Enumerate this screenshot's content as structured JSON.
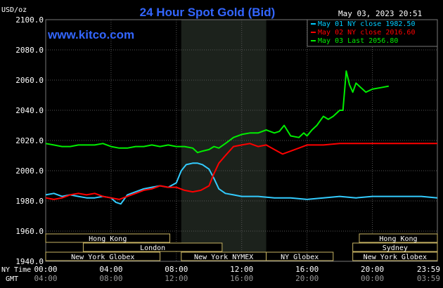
{
  "chart_data": {
    "type": "line",
    "title": "24 Hour Spot Gold (Bid)",
    "source": "www.kitco.com",
    "timestamp": "May 03, 2023 20:51",
    "y_unit": "USD/oz",
    "ylim": [
      1940,
      2100
    ],
    "yticks": [
      "2100.0",
      "2080.0",
      "2060.0",
      "2040.0",
      "2020.0",
      "2000.0",
      "1980.0",
      "1960.0",
      "1940.0"
    ],
    "x_row_labels": {
      "ny": "NY Time",
      "gmt": "GMT"
    },
    "x_ticks_ny": [
      "00:00",
      "04:00",
      "08:00",
      "12:00",
      "16:00",
      "20:00",
      "23:59"
    ],
    "x_ticks_gmt": [
      "04:00",
      "08:00",
      "12:00",
      "16:00",
      "20:00",
      "00:00",
      "03:59"
    ],
    "legend": [
      {
        "label": "May 01 NY close 1982.50",
        "color": "#00ccff"
      },
      {
        "label": "May 02 NY close 2016.60",
        "color": "#ff0000"
      },
      {
        "label": "May 03 Last 2056.80",
        "color": "#00ee00"
      }
    ],
    "series": [
      {
        "name": "May 01",
        "color": "#33ccff",
        "x": [
          0,
          0.5,
          1,
          1.5,
          2,
          2.5,
          3,
          3.5,
          4,
          4.3,
          4.6,
          5,
          5.5,
          6,
          6.5,
          7,
          7.5,
          8,
          8.3,
          8.6,
          9,
          9.3,
          9.6,
          10,
          10.3,
          10.6,
          11,
          11.5,
          12,
          13,
          14,
          15,
          16,
          17,
          18,
          19,
          20,
          21,
          22,
          23,
          23.98
        ],
        "y": [
          1984,
          1985,
          1983,
          1984,
          1983,
          1982,
          1982,
          1983,
          1982,
          1979,
          1978,
          1984,
          1986,
          1988,
          1989,
          1990,
          1989,
          1992,
          2000,
          2004,
          2005,
          2005,
          2004,
          2001,
          1995,
          1988,
          1985,
          1984,
          1983,
          1983,
          1982,
          1982,
          1981,
          1982,
          1983,
          1982,
          1983,
          1983,
          1983,
          1983,
          1982
        ]
      },
      {
        "name": "May 02",
        "color": "#ff0000",
        "x": [
          0,
          0.5,
          1,
          1.5,
          2,
          2.5,
          3,
          3.5,
          4,
          4.5,
          5,
          5.5,
          6,
          6.5,
          7,
          7.5,
          8,
          8.5,
          9,
          9.5,
          10,
          10.3,
          10.6,
          11,
          11.5,
          12,
          12.5,
          13,
          13.5,
          14,
          14.5,
          15,
          15.5,
          16,
          17,
          18,
          19,
          20,
          21,
          22,
          23,
          23.98
        ],
        "y": [
          1982,
          1981,
          1982,
          1984,
          1985,
          1984,
          1985,
          1983,
          1982,
          1981,
          1983,
          1985,
          1987,
          1988,
          1990,
          1989,
          1989,
          1987,
          1986,
          1987,
          1990,
          1998,
          2005,
          2010,
          2016,
          2017,
          2018,
          2016,
          2017,
          2014,
          2011,
          2013,
          2015,
          2017,
          2017,
          2018,
          2018,
          2018,
          2018,
          2018,
          2018,
          2018
        ]
      },
      {
        "name": "May 03",
        "color": "#00ee00",
        "x": [
          0,
          0.5,
          1,
          1.5,
          2,
          2.5,
          3,
          3.5,
          4,
          4.5,
          5,
          5.5,
          6,
          6.5,
          7,
          7.5,
          8,
          8.5,
          9,
          9.3,
          9.6,
          10,
          10.3,
          10.6,
          11,
          11.5,
          12,
          12.5,
          13,
          13.5,
          14,
          14.3,
          14.6,
          15,
          15.5,
          15.8,
          16,
          16.3,
          16.6,
          17,
          17.3,
          17.6,
          18,
          18.05,
          18.2,
          18.4,
          18.6,
          18.8,
          19,
          19.3,
          19.6,
          20,
          20.5,
          21
        ],
        "y": [
          2018,
          2017,
          2016,
          2016,
          2017,
          2017,
          2017,
          2018,
          2016,
          2015,
          2015,
          2016,
          2016,
          2017,
          2016,
          2017,
          2016,
          2016,
          2015,
          2012,
          2013,
          2014,
          2016,
          2015,
          2018,
          2022,
          2024,
          2025,
          2025,
          2027,
          2025,
          2026,
          2030,
          2023,
          2022,
          2025,
          2023,
          2027,
          2030,
          2036,
          2034,
          2036,
          2040,
          2040,
          2040,
          2066,
          2057,
          2052,
          2058,
          2055,
          2052,
          2054,
          2055,
          2056
        ]
      }
    ],
    "shaded_region": {
      "x_start": 8.3,
      "x_end": 13.5,
      "label": "New York NYMEX"
    },
    "sessions": [
      {
        "label": "Hong Kong",
        "x_start": 0,
        "x_end": 7.6,
        "row": 0
      },
      {
        "label": "Hong Kong",
        "x_start": 19.2,
        "x_end": 23.98,
        "row": 0
      },
      {
        "label": "London",
        "x_start": 2.3,
        "x_end": 10.8,
        "row": 1
      },
      {
        "label": "Sydney",
        "x_start": 18.8,
        "x_end": 23.98,
        "row": 1
      },
      {
        "label": "New York Globex",
        "x_start": 0,
        "x_end": 7.0,
        "row": 2
      },
      {
        "label": "New York NYMEX",
        "x_start": 8.3,
        "x_end": 13.5,
        "row": 2
      },
      {
        "label": "NY Globex",
        "x_start": 13.5,
        "x_end": 17.6,
        "row": 2
      },
      {
        "label": "New York Globex",
        "x_start": 18.8,
        "x_end": 23.98,
        "row": 2
      }
    ],
    "grid": true
  }
}
